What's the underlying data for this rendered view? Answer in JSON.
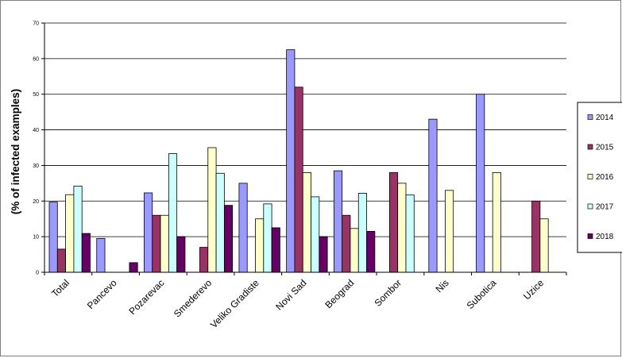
{
  "chart_data": {
    "type": "bar",
    "title": "",
    "xlabel": "",
    "ylabel": "(% of infected examples)",
    "ylim": [
      0,
      70
    ],
    "yticks": [
      0,
      10,
      20,
      30,
      40,
      50,
      60,
      70
    ],
    "grid": "horizontal",
    "legend_position": "right",
    "categories": [
      "Total",
      "Pancevo",
      "Pozarevac",
      "Smederevo",
      "Veliko Gradiste",
      "Novi Sad",
      "Beograd",
      "Sombor",
      "Nis",
      "Subotica",
      "Uzice"
    ],
    "series": [
      {
        "name": "2014",
        "color": "#9999ff",
        "values": [
          19.7,
          9.5,
          22.3,
          null,
          25.0,
          62.5,
          28.5,
          null,
          43.0,
          50.0,
          null
        ]
      },
      {
        "name": "2015",
        "color": "#993366",
        "values": [
          6.5,
          null,
          16.0,
          7.0,
          null,
          52.0,
          16.0,
          28.0,
          null,
          null,
          20.0
        ]
      },
      {
        "name": "2016",
        "color": "#ffffcc",
        "values": [
          21.8,
          null,
          16.0,
          35.0,
          15.0,
          28.0,
          12.3,
          25.0,
          23.0,
          28.0,
          15.0
        ]
      },
      {
        "name": "2017",
        "color": "#ccffff",
        "values": [
          24.2,
          null,
          33.3,
          27.8,
          19.2,
          21.2,
          22.2,
          21.7,
          null,
          null,
          null
        ]
      },
      {
        "name": "2018",
        "color": "#660066",
        "values": [
          10.9,
          2.7,
          10.0,
          18.8,
          12.5,
          10.0,
          11.5,
          null,
          null,
          null,
          null
        ]
      }
    ]
  }
}
